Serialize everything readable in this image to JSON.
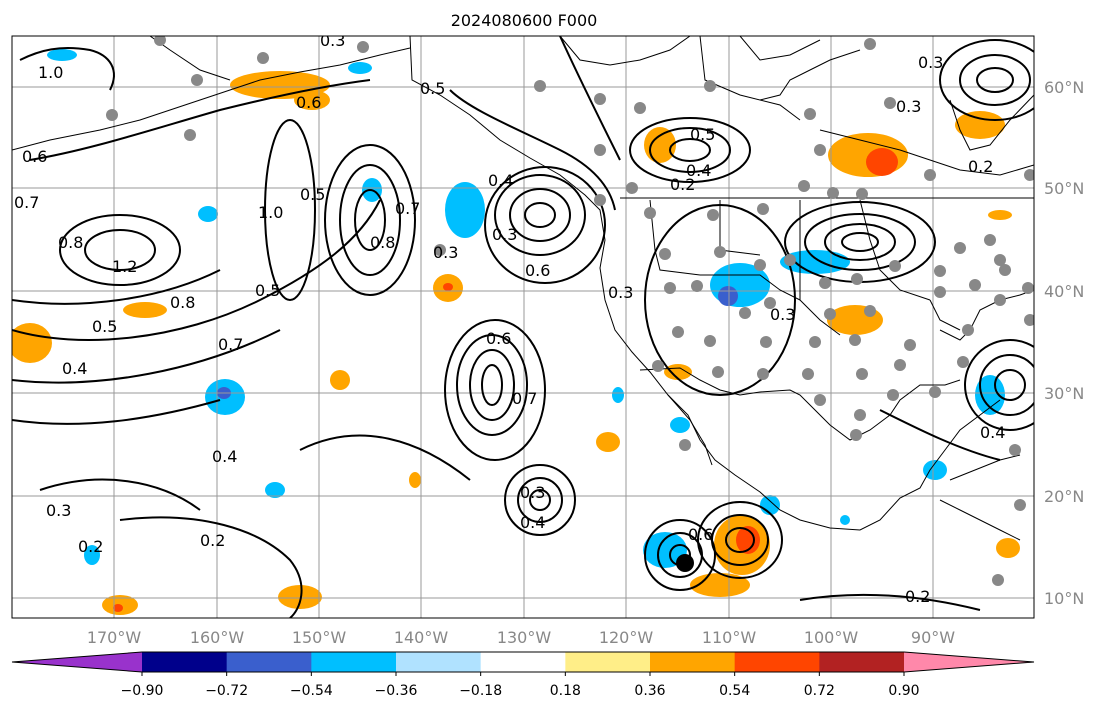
{
  "title": "2024080600 F000",
  "lon_labels": [
    "170°W",
    "160°W",
    "150°W",
    "140°W",
    "130°W",
    "120°W",
    "110°W",
    "100°W",
    "90°W"
  ],
  "lat_labels": [
    "60°N",
    "50°N",
    "40°N",
    "30°N",
    "20°N",
    "10°N"
  ],
  "colorbar": {
    "colors": [
      "#9932CC",
      "#00008B",
      "#3A5FCD",
      "#00BFFF",
      "#B0E2FF",
      "#FFFFFF",
      "#FFEE88",
      "#FFA500",
      "#FF4500",
      "#B22222",
      "#FF88AA"
    ],
    "tick_labels": [
      "−0.90",
      "−0.72",
      "−0.54",
      "−0.36",
      "−0.18",
      "0.18",
      "0.36",
      "0.54",
      "0.72",
      "0.90"
    ]
  },
  "contour_labels": [
    "1.0",
    "0.3",
    "0.6",
    "0.5",
    "0.6",
    "0.7",
    "0.8",
    "1.2",
    "0.8",
    "0.5",
    "0.4",
    "0.7",
    "1.0",
    "0.8",
    "0.7",
    "0.5",
    "0.3",
    "0.4",
    "0.5",
    "0.4",
    "0.3",
    "0.2",
    "0.3",
    "0.6",
    "0.6",
    "0.7",
    "0.3",
    "0.5",
    "0.2",
    "0.3",
    "0.2",
    "0.3",
    "0.3",
    "0.2",
    "0.3",
    "0.4",
    "0.2",
    "0.4",
    "0.6",
    "0.4"
  ],
  "colors": {
    "grid": "#999999",
    "contour": "#000000",
    "station": "#888888",
    "coast": "#000000"
  }
}
